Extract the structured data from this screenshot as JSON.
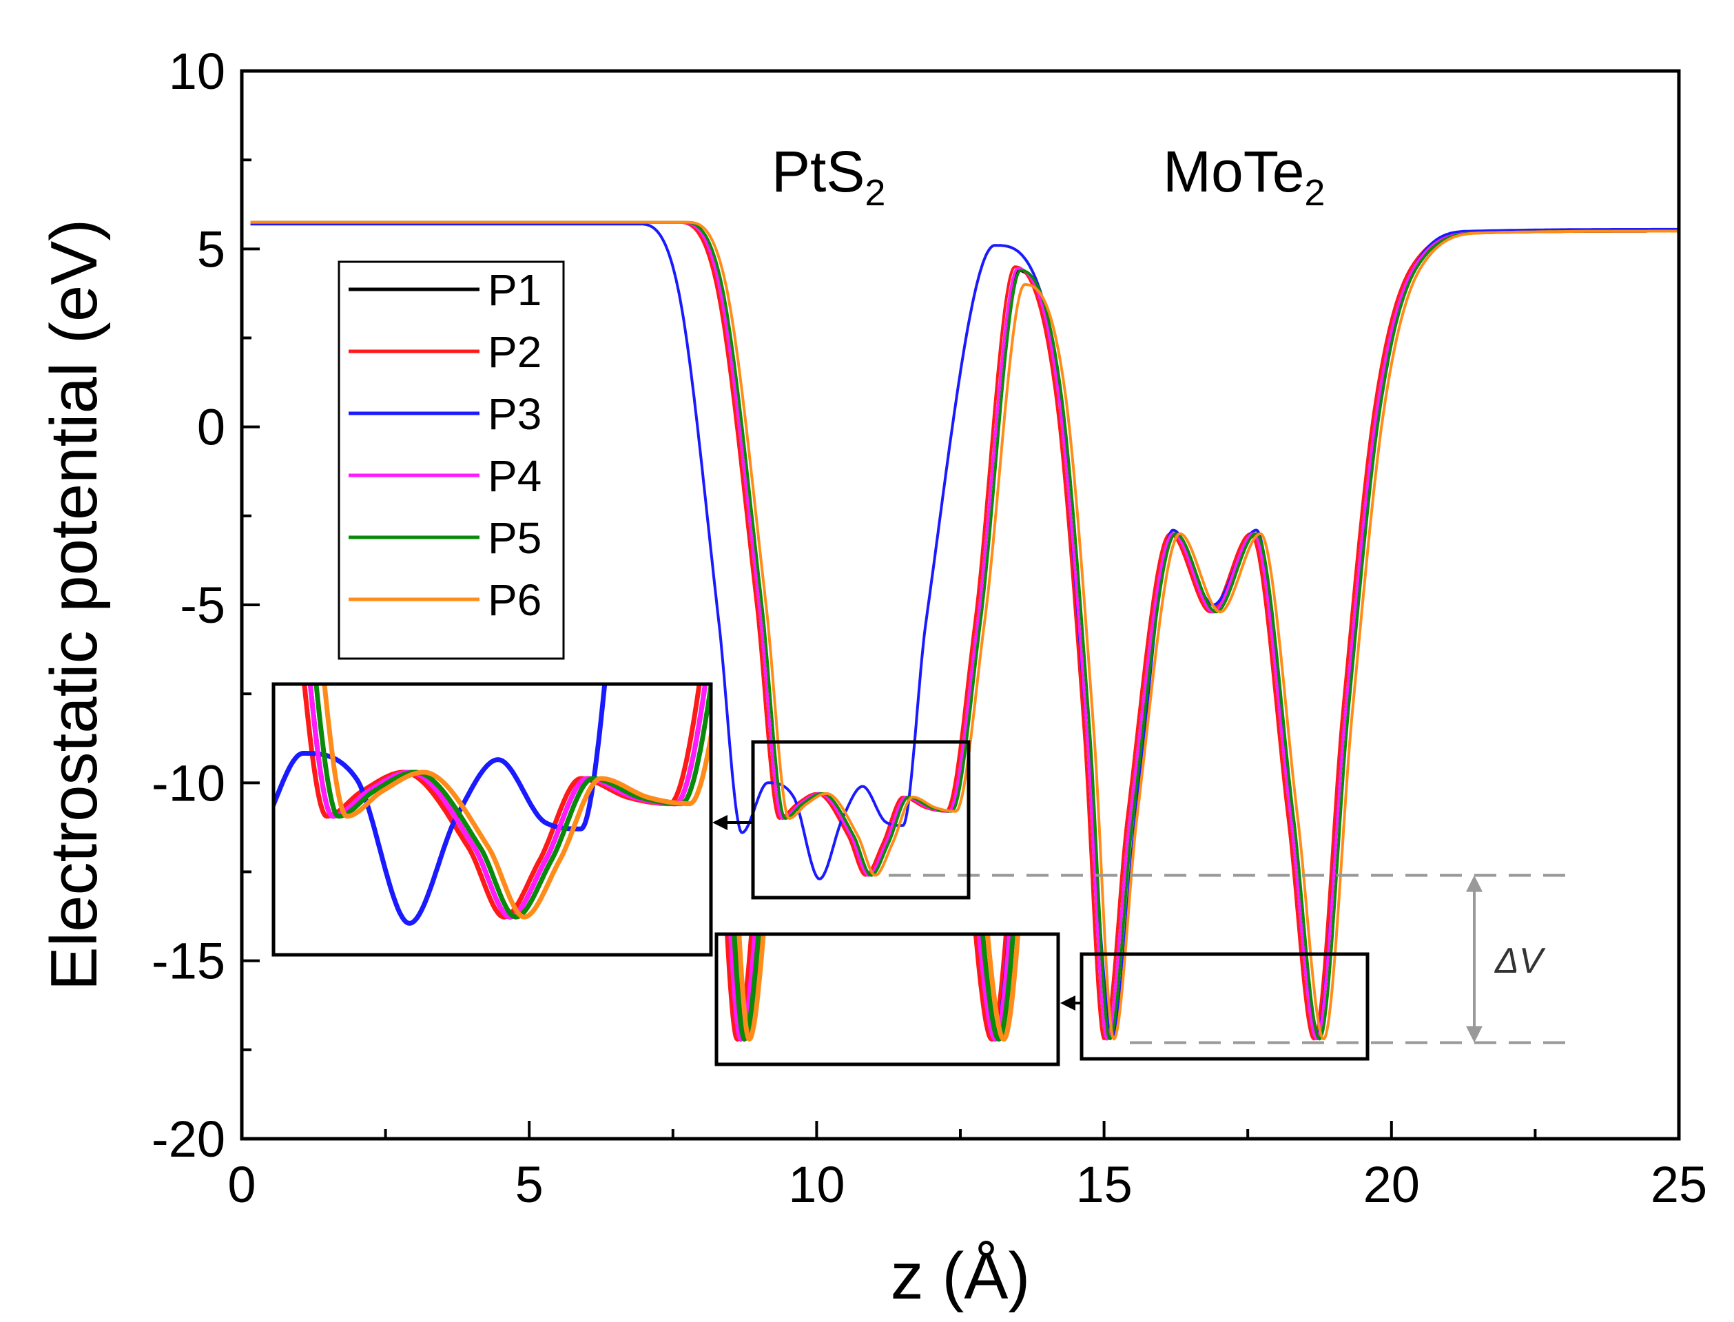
{
  "chart_data": {
    "type": "line",
    "xlabel": "z (Å)",
    "ylabel": "Electrostatic potential (eV)",
    "xlim": [
      0,
      25
    ],
    "ylim": [
      -20,
      10
    ],
    "xticks": [
      0,
      5,
      10,
      15,
      20,
      25
    ],
    "yticks": [
      10,
      5,
      0,
      -5,
      -10,
      -15,
      -20
    ],
    "xtick_labels": [
      "0",
      "5",
      "10",
      "15",
      "20",
      "25"
    ],
    "ytick_labels": [
      "10",
      "5",
      "0",
      "-5",
      "-10",
      "-15",
      "-20"
    ],
    "legend_position": "upper-left",
    "annotations": {
      "pts2": {
        "main": "PtS",
        "sub": "2"
      },
      "mote2": {
        "main": "MoTe",
        "sub": "2"
      },
      "delta_v": "ΔV",
      "delta_v_range": [
        -17.3,
        -12.6
      ]
    },
    "insets": [
      {
        "name": "PtS2 well zoom",
        "source_xlim": [
          8.9,
          12.6
        ],
        "source_ylim": [
          -13.2,
          -8.9
        ]
      },
      {
        "name": "MoTe2 well zoom",
        "source_xlim": [
          14.7,
          19.6
        ],
        "source_ylim": [
          -17.8,
          -14.7
        ]
      }
    ],
    "series": [
      {
        "name": "P1",
        "color": "#000000",
        "zshift": 0.0,
        "barrier": 4.4,
        "anchors": [
          [
            0,
            5.75
          ],
          [
            7.6,
            5.75
          ],
          [
            8.3,
            4.0
          ],
          [
            9.0,
            -5.0
          ],
          [
            9.4,
            -11.0
          ],
          [
            9.7,
            -10.6
          ],
          [
            10.05,
            -10.3
          ],
          [
            10.6,
            -11.5
          ],
          [
            10.9,
            -12.6
          ],
          [
            11.2,
            -11.7
          ],
          [
            11.55,
            -10.4
          ],
          [
            11.95,
            -10.7
          ],
          [
            12.3,
            -10.8
          ],
          [
            12.8,
            -5.5
          ],
          [
            13.5,
            4.4
          ],
          [
            14.2,
            1.0
          ],
          [
            14.7,
            -8.5
          ],
          [
            15.05,
            -17.2
          ],
          [
            15.45,
            -11.0
          ],
          [
            16.2,
            -3.0
          ],
          [
            16.9,
            -5.2
          ],
          [
            17.6,
            -3.0
          ],
          [
            18.25,
            -11.0
          ],
          [
            18.7,
            -17.2
          ],
          [
            19.2,
            -8.0
          ],
          [
            19.75,
            0.5
          ],
          [
            20.4,
            4.5
          ],
          [
            21.5,
            5.45
          ],
          [
            25,
            5.5
          ]
        ]
      },
      {
        "name": "P2",
        "color": "#ff1a1a",
        "zshift": -0.05,
        "barrier": 4.5,
        "anchors": [
          [
            0,
            5.75
          ],
          [
            7.6,
            5.75
          ],
          [
            8.3,
            4.0
          ],
          [
            9.0,
            -5.0
          ],
          [
            9.4,
            -11.0
          ],
          [
            9.7,
            -10.6
          ],
          [
            10.05,
            -10.3
          ],
          [
            10.6,
            -11.5
          ],
          [
            10.9,
            -12.6
          ],
          [
            11.2,
            -11.7
          ],
          [
            11.55,
            -10.4
          ],
          [
            11.95,
            -10.7
          ],
          [
            12.3,
            -10.8
          ],
          [
            12.8,
            -5.5
          ],
          [
            13.5,
            4.4
          ],
          [
            14.2,
            1.0
          ],
          [
            14.7,
            -8.5
          ],
          [
            15.05,
            -17.2
          ],
          [
            15.45,
            -11.0
          ],
          [
            16.2,
            -3.0
          ],
          [
            16.9,
            -5.2
          ],
          [
            17.6,
            -3.0
          ],
          [
            18.25,
            -11.0
          ],
          [
            18.7,
            -17.2
          ],
          [
            19.2,
            -8.0
          ],
          [
            19.75,
            0.5
          ],
          [
            20.4,
            4.5
          ],
          [
            21.5,
            5.45
          ],
          [
            25,
            5.5
          ]
        ]
      },
      {
        "name": "P3",
        "color": "#1a1aff",
        "zshift": -0.4,
        "barrier": 5.1,
        "anchors": [
          [
            0,
            5.7
          ],
          [
            7.3,
            5.7
          ],
          [
            8.0,
            3.8
          ],
          [
            8.7,
            -5.5
          ],
          [
            9.1,
            -11.4
          ],
          [
            9.55,
            -10.0
          ],
          [
            10.0,
            -10.4
          ],
          [
            10.45,
            -12.7
          ],
          [
            10.85,
            -11.0
          ],
          [
            11.2,
            -10.1
          ],
          [
            11.6,
            -11.1
          ],
          [
            11.9,
            -11.2
          ],
          [
            12.3,
            -5.5
          ],
          [
            13.5,
            5.1
          ],
          [
            14.5,
            2.5
          ],
          [
            15.1,
            -8.5
          ],
          [
            15.55,
            -17.1
          ],
          [
            15.95,
            -11.0
          ],
          [
            16.6,
            -2.9
          ],
          [
            17.3,
            -5.0
          ],
          [
            18.05,
            -2.9
          ],
          [
            18.65,
            -11.0
          ],
          [
            19.1,
            -17.1
          ],
          [
            19.6,
            -8.0
          ],
          [
            20.2,
            0.5
          ],
          [
            20.8,
            4.5
          ],
          [
            21.8,
            5.5
          ],
          [
            25,
            5.55
          ]
        ]
      },
      {
        "name": "P4",
        "color": "#ff1aff",
        "zshift": 0.0,
        "barrier": 4.45,
        "anchors": [
          [
            0,
            5.75
          ],
          [
            7.6,
            5.75
          ],
          [
            8.3,
            4.0
          ],
          [
            9.0,
            -5.0
          ],
          [
            9.4,
            -11.0
          ],
          [
            9.7,
            -10.6
          ],
          [
            10.05,
            -10.3
          ],
          [
            10.6,
            -11.5
          ],
          [
            10.9,
            -12.6
          ],
          [
            11.2,
            -11.7
          ],
          [
            11.55,
            -10.4
          ],
          [
            11.95,
            -10.7
          ],
          [
            12.3,
            -10.8
          ],
          [
            12.8,
            -5.5
          ],
          [
            13.5,
            4.4
          ],
          [
            14.2,
            1.0
          ],
          [
            14.7,
            -8.5
          ],
          [
            15.05,
            -17.2
          ],
          [
            15.45,
            -11.0
          ],
          [
            16.2,
            -3.0
          ],
          [
            16.9,
            -5.2
          ],
          [
            17.6,
            -3.0
          ],
          [
            18.25,
            -11.0
          ],
          [
            18.7,
            -17.2
          ],
          [
            19.2,
            -8.0
          ],
          [
            19.75,
            0.5
          ],
          [
            20.4,
            4.5
          ],
          [
            21.5,
            5.45
          ],
          [
            25,
            5.5
          ]
        ]
      },
      {
        "name": "P5",
        "color": "#0a8a0a",
        "zshift": 0.05,
        "barrier": 4.4,
        "anchors": [
          [
            0,
            5.75
          ],
          [
            7.6,
            5.75
          ],
          [
            8.3,
            4.0
          ],
          [
            9.0,
            -5.0
          ],
          [
            9.4,
            -11.0
          ],
          [
            9.7,
            -10.6
          ],
          [
            10.05,
            -10.3
          ],
          [
            10.6,
            -11.5
          ],
          [
            10.9,
            -12.6
          ],
          [
            11.2,
            -11.7
          ],
          [
            11.55,
            -10.4
          ],
          [
            11.95,
            -10.7
          ],
          [
            12.3,
            -10.8
          ],
          [
            12.8,
            -5.5
          ],
          [
            13.5,
            4.4
          ],
          [
            14.2,
            1.0
          ],
          [
            14.7,
            -8.5
          ],
          [
            15.05,
            -17.2
          ],
          [
            15.45,
            -11.0
          ],
          [
            16.2,
            -3.0
          ],
          [
            16.9,
            -5.2
          ],
          [
            17.6,
            -3.0
          ],
          [
            18.25,
            -11.0
          ],
          [
            18.7,
            -17.2
          ],
          [
            19.2,
            -8.0
          ],
          [
            19.75,
            0.5
          ],
          [
            20.4,
            4.5
          ],
          [
            21.5,
            5.45
          ],
          [
            25,
            5.5
          ]
        ]
      },
      {
        "name": "P6",
        "color": "#ff8c1a",
        "zshift": 0.12,
        "barrier": 4.0,
        "anchors": [
          [
            0,
            5.75
          ],
          [
            7.6,
            5.75
          ],
          [
            8.3,
            4.0
          ],
          [
            9.0,
            -5.0
          ],
          [
            9.4,
            -11.0
          ],
          [
            9.7,
            -10.6
          ],
          [
            10.05,
            -10.3
          ],
          [
            10.6,
            -11.5
          ],
          [
            10.9,
            -12.6
          ],
          [
            11.2,
            -11.7
          ],
          [
            11.55,
            -10.4
          ],
          [
            11.95,
            -10.7
          ],
          [
            12.3,
            -10.8
          ],
          [
            12.8,
            -5.5
          ],
          [
            13.5,
            4.4
          ],
          [
            14.2,
            1.0
          ],
          [
            14.7,
            -8.5
          ],
          [
            15.05,
            -17.2
          ],
          [
            15.45,
            -11.0
          ],
          [
            16.2,
            -3.0
          ],
          [
            16.9,
            -5.2
          ],
          [
            17.6,
            -3.0
          ],
          [
            18.25,
            -11.0
          ],
          [
            18.7,
            -17.2
          ],
          [
            19.2,
            -8.0
          ],
          [
            19.75,
            0.5
          ],
          [
            20.4,
            4.5
          ],
          [
            21.5,
            5.45
          ],
          [
            25,
            5.5
          ]
        ]
      }
    ]
  }
}
